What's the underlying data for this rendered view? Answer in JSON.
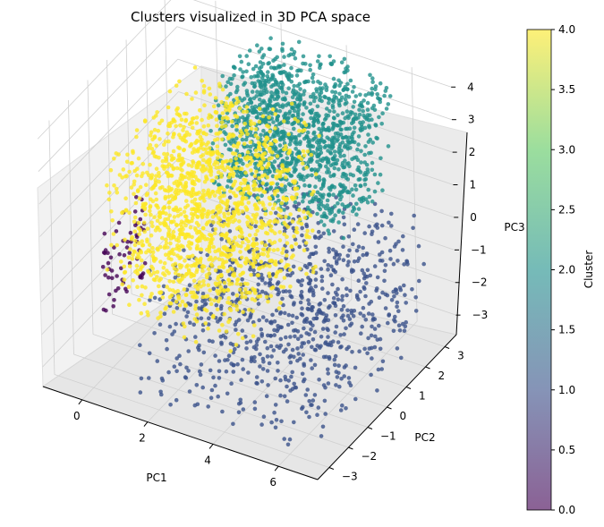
{
  "chart_data": {
    "type": "scatter",
    "title": "Clusters visualized in 3D PCA space",
    "xlabel": "PC1",
    "ylabel": "PC2",
    "zlabel": "PC3",
    "xticks": [
      "0",
      "2",
      "4",
      "6"
    ],
    "yticks": [
      "−3",
      "−2",
      "−1",
      "0",
      "1",
      "2",
      "3"
    ],
    "zticks": [
      "−3",
      "−2",
      "−1",
      "0",
      "1",
      "2",
      "3",
      "4"
    ],
    "xlim": [
      -1.2,
      7.2
    ],
    "ylim": [
      -3.6,
      3.6
    ],
    "zlim": [
      -3.6,
      4.2
    ],
    "colorbar": {
      "label": "Cluster",
      "range": [
        0.0,
        4.0
      ],
      "ticks": [
        "0.0",
        "0.5",
        "1.0",
        "1.5",
        "2.0",
        "2.5",
        "3.0",
        "3.5",
        "4.0"
      ],
      "colormap": "viridis"
    },
    "clusters": [
      {
        "value": 0,
        "color": "#440154",
        "x_range": [
          -1.0,
          -0.8
        ],
        "y_range": [
          -1.0,
          1.2
        ],
        "z_range": [
          -3.0,
          -0.5
        ]
      },
      {
        "value": 1,
        "color": "#3b528b",
        "x_range": [
          1.5,
          6.8
        ],
        "y_range": [
          -3.2,
          3.2
        ],
        "z_range": [
          -3.4,
          0.3
        ]
      },
      {
        "value": 2,
        "color": "#21918c",
        "x_range": [
          1.5,
          5.5
        ],
        "y_range": [
          0.5,
          3.5
        ],
        "z_range": [
          0.5,
          4.0
        ]
      },
      {
        "value": 4,
        "color": "#fde725",
        "x_range": [
          -0.5,
          3.5
        ],
        "y_range": [
          -1.5,
          3.0
        ],
        "z_range": [
          -2.5,
          2.5
        ]
      }
    ]
  }
}
